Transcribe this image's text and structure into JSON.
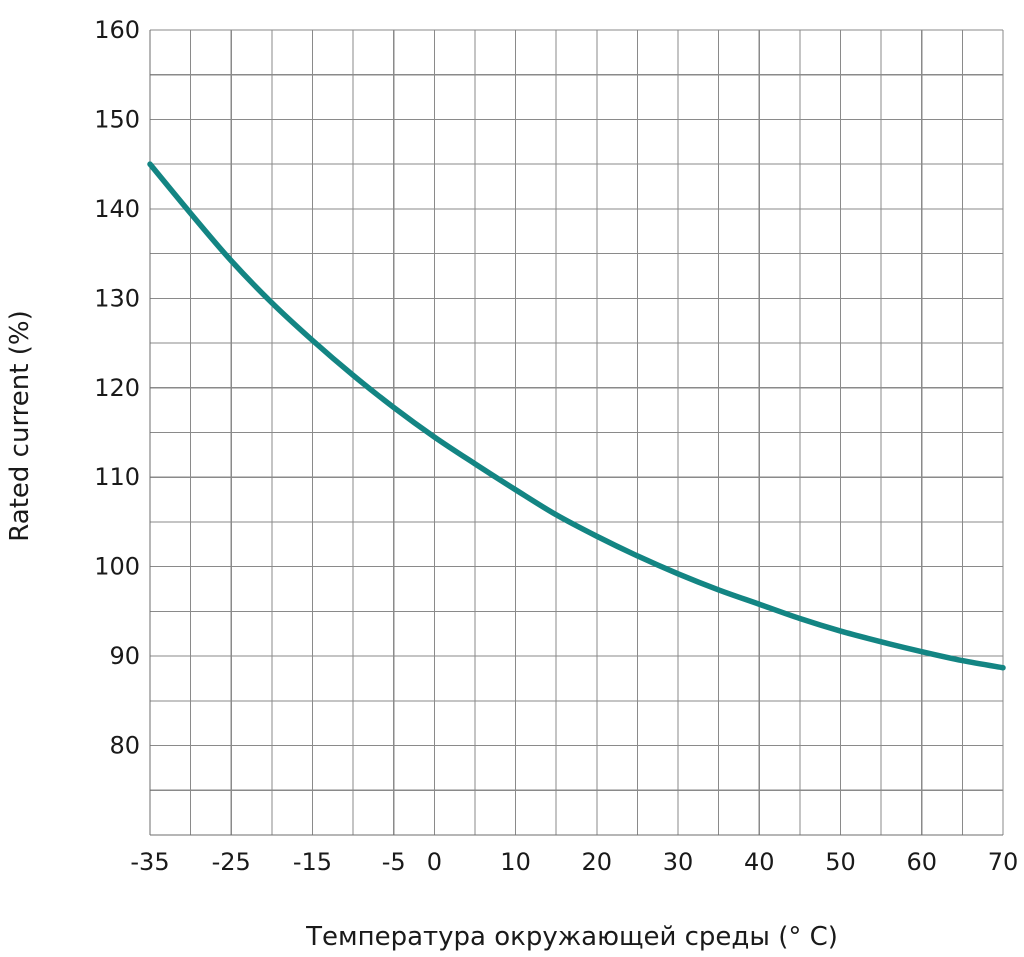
{
  "chart_data": {
    "type": "line",
    "title": "",
    "xlabel": "Температура окружающей среды (° C)",
    "ylabel": "Rated current (%)",
    "xlim": [
      -35,
      70
    ],
    "ylim": [
      70,
      160
    ],
    "x_tick_labels": [
      "-35",
      "-25",
      "-15",
      "-5",
      "0",
      "10",
      "20",
      "30",
      "40",
      "50",
      "60",
      "70"
    ],
    "y_tick_labels": [
      "160",
      "150",
      "140",
      "130",
      "120",
      "110",
      "100",
      "90",
      "80"
    ],
    "grid": true,
    "legend": "none",
    "series": [
      {
        "color": "#138583",
        "x": [
          -35,
          -30,
          -25,
          -20,
          -15,
          -10,
          -5,
          0,
          5,
          10,
          15,
          20,
          25,
          30,
          35,
          40,
          45,
          50,
          55,
          60,
          65,
          70
        ],
        "y": [
          145,
          139.5,
          134.2,
          129.5,
          125.3,
          121.4,
          117.8,
          114.5,
          111.5,
          108.6,
          105.8,
          103.4,
          101.2,
          99.2,
          97.4,
          95.8,
          94.2,
          92.8,
          91.6,
          90.5,
          89.5,
          88.7
        ]
      }
    ]
  }
}
